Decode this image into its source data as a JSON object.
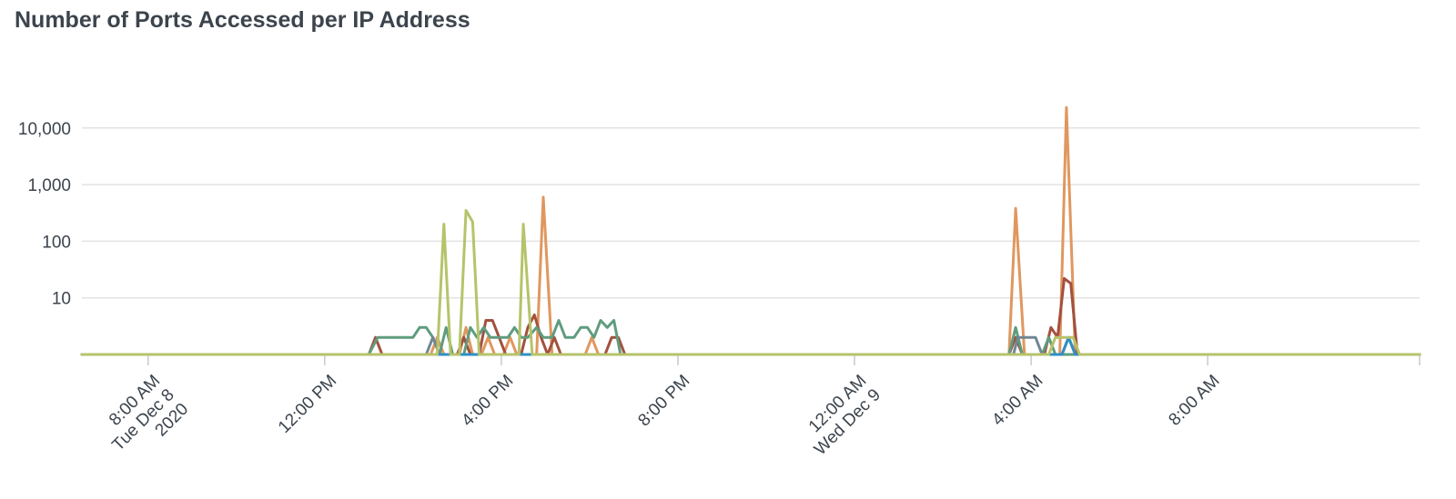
{
  "chart_data": {
    "type": "line",
    "title": "Number of Ports Accessed per IP Address",
    "y_scale": "log",
    "ylim": [
      1,
      30000
    ],
    "y_ticks": [
      {
        "value": 10,
        "label": "10"
      },
      {
        "value": 100,
        "label": "100"
      },
      {
        "value": 1000,
        "label": "1,000"
      },
      {
        "value": 10000,
        "label": "10,000"
      }
    ],
    "x_domain": [
      -1.5,
      28.8
    ],
    "x_ticks": [
      {
        "value": 0,
        "lines": [
          "8:00 AM",
          "Tue Dec 8",
          "2020"
        ]
      },
      {
        "value": 4,
        "lines": [
          "12:00 PM"
        ]
      },
      {
        "value": 8,
        "lines": [
          "4:00 PM"
        ]
      },
      {
        "value": 12,
        "lines": [
          "8:00 PM"
        ]
      },
      {
        "value": 16,
        "lines": [
          "12:00 AM",
          "Wed Dec 9"
        ]
      },
      {
        "value": 20,
        "lines": [
          "4:00 AM"
        ]
      },
      {
        "value": 24,
        "lines": [
          "8:00 AM"
        ]
      }
    ],
    "grid": true,
    "legend": "none",
    "series": [
      {
        "color": "#e0975f",
        "points": [
          [
            -1.5,
            1
          ],
          [
            6.4,
            1
          ],
          [
            6.55,
            2
          ],
          [
            6.7,
            1
          ],
          [
            7.05,
            1
          ],
          [
            7.2,
            3
          ],
          [
            7.35,
            1
          ],
          [
            7.55,
            1
          ],
          [
            7.7,
            2
          ],
          [
            7.85,
            1
          ],
          [
            8.05,
            1
          ],
          [
            8.2,
            2
          ],
          [
            8.35,
            1
          ],
          [
            8.8,
            1
          ],
          [
            8.95,
            600
          ],
          [
            9.15,
            1
          ],
          [
            9.9,
            1
          ],
          [
            10.05,
            2
          ],
          [
            10.2,
            1
          ],
          [
            12,
            1
          ],
          [
            19.5,
            1
          ],
          [
            19.65,
            380
          ],
          [
            19.85,
            1
          ],
          [
            20.65,
            1
          ],
          [
            20.8,
            23000
          ],
          [
            21,
            1
          ],
          [
            28.8,
            1
          ]
        ]
      },
      {
        "color": "#a2503f",
        "points": [
          [
            -1.5,
            1
          ],
          [
            5.0,
            1
          ],
          [
            5.15,
            2
          ],
          [
            5.3,
            1
          ],
          [
            7.0,
            1
          ],
          [
            7.15,
            2
          ],
          [
            7.3,
            1
          ],
          [
            7.5,
            1
          ],
          [
            7.65,
            4
          ],
          [
            7.8,
            4
          ],
          [
            7.95,
            2
          ],
          [
            8.1,
            1
          ],
          [
            8.45,
            1
          ],
          [
            8.6,
            3
          ],
          [
            8.75,
            5
          ],
          [
            8.9,
            2
          ],
          [
            9.05,
            1
          ],
          [
            9.2,
            2
          ],
          [
            9.35,
            1
          ],
          [
            10.35,
            1
          ],
          [
            10.5,
            2
          ],
          [
            10.65,
            2
          ],
          [
            10.8,
            1
          ],
          [
            19.5,
            1
          ],
          [
            19.65,
            2
          ],
          [
            19.8,
            1
          ],
          [
            20.3,
            1
          ],
          [
            20.45,
            3
          ],
          [
            20.6,
            2
          ],
          [
            20.75,
            22
          ],
          [
            20.9,
            18
          ],
          [
            21.05,
            1
          ],
          [
            28.8,
            1
          ]
        ]
      },
      {
        "color": "#5f9c7e",
        "points": [
          [
            -1.5,
            1
          ],
          [
            5.0,
            1
          ],
          [
            5.2,
            2
          ],
          [
            6.0,
            2
          ],
          [
            6.15,
            3
          ],
          [
            6.3,
            3
          ],
          [
            6.45,
            2
          ],
          [
            6.6,
            1
          ],
          [
            6.75,
            3
          ],
          [
            6.9,
            1
          ],
          [
            7.15,
            1
          ],
          [
            7.3,
            3
          ],
          [
            7.45,
            2
          ],
          [
            7.6,
            3
          ],
          [
            7.75,
            2
          ],
          [
            8.0,
            2
          ],
          [
            8.15,
            2
          ],
          [
            8.3,
            3
          ],
          [
            8.45,
            2
          ],
          [
            8.6,
            2
          ],
          [
            8.8,
            3
          ],
          [
            8.95,
            2
          ],
          [
            9.15,
            2
          ],
          [
            9.3,
            4
          ],
          [
            9.45,
            2
          ],
          [
            9.65,
            2
          ],
          [
            9.8,
            3
          ],
          [
            9.95,
            3
          ],
          [
            10.1,
            2
          ],
          [
            10.25,
            4
          ],
          [
            10.4,
            3
          ],
          [
            10.55,
            4
          ],
          [
            10.7,
            1
          ],
          [
            19.5,
            1
          ],
          [
            19.65,
            3
          ],
          [
            19.8,
            1
          ],
          [
            20.25,
            1
          ],
          [
            20.4,
            2
          ],
          [
            20.55,
            1
          ],
          [
            28.8,
            1
          ]
        ]
      },
      {
        "color": "#708794",
        "points": [
          [
            -1.5,
            1
          ],
          [
            6.3,
            1
          ],
          [
            6.45,
            2
          ],
          [
            6.6,
            1
          ],
          [
            19.6,
            1
          ],
          [
            19.7,
            2
          ],
          [
            20.1,
            2
          ],
          [
            20.25,
            1
          ],
          [
            20.7,
            1
          ],
          [
            20.85,
            2
          ],
          [
            21.0,
            1
          ],
          [
            28.8,
            1
          ]
        ]
      },
      {
        "color": "#2f8fc4",
        "points": [
          [
            -1.5,
            1
          ],
          [
            20.7,
            1
          ],
          [
            20.85,
            2
          ],
          [
            21.0,
            1
          ],
          [
            28.8,
            1
          ]
        ]
      },
      {
        "color": "#b6c36a",
        "points": [
          [
            -1.5,
            1
          ],
          [
            6.55,
            1
          ],
          [
            6.7,
            200
          ],
          [
            6.85,
            1
          ],
          [
            7.05,
            1
          ],
          [
            7.2,
            350
          ],
          [
            7.35,
            220
          ],
          [
            7.5,
            1
          ],
          [
            8.4,
            1
          ],
          [
            8.5,
            200
          ],
          [
            8.7,
            1
          ],
          [
            20.4,
            1
          ],
          [
            20.55,
            2
          ],
          [
            20.95,
            2
          ],
          [
            21.1,
            1
          ],
          [
            28.8,
            1
          ]
        ]
      }
    ]
  }
}
